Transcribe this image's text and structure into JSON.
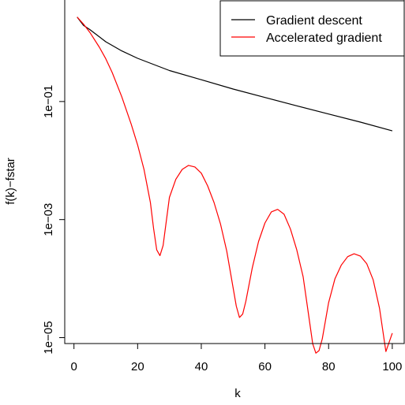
{
  "chart_data": {
    "type": "line",
    "title": "",
    "xlabel": "k",
    "ylabel": "f(k)−fstar",
    "xlim": [
      -2.9,
      104
    ],
    "ylim_log10": [
      -5.1,
      0.72
    ],
    "y_scale": "log",
    "grid": false,
    "legend_placement": "top-right",
    "x_ticks": [
      {
        "value": 0,
        "label": "0"
      },
      {
        "value": 20,
        "label": "20"
      },
      {
        "value": 40,
        "label": "40"
      },
      {
        "value": 60,
        "label": "60"
      },
      {
        "value": 80,
        "label": "80"
      },
      {
        "value": 100,
        "label": "100"
      }
    ],
    "y_ticks": [
      {
        "value": 0.1,
        "label": "1e−01"
      },
      {
        "value": 0.001,
        "label": "1e−03"
      },
      {
        "value": 1e-05,
        "label": "1e−05"
      }
    ],
    "series": [
      {
        "name": "Gradient descent",
        "color": "#000000",
        "x": [
          1,
          3,
          5,
          10,
          15,
          20,
          30,
          40,
          50,
          60,
          70,
          80,
          90,
          100
        ],
        "y": [
          2.7,
          1.95,
          1.65,
          1.03,
          0.72,
          0.54,
          0.335,
          0.234,
          0.163,
          0.117,
          0.0845,
          0.0615,
          0.0447,
          0.0318
        ]
      },
      {
        "name": "Accelerated gradient",
        "color": "#ff0000",
        "x": [
          1,
          3,
          5,
          8,
          10,
          12,
          15,
          18,
          20,
          22,
          24,
          25,
          26,
          27,
          28,
          30,
          32,
          34,
          36,
          38,
          40,
          42,
          44,
          46,
          48,
          50,
          51,
          52,
          53,
          54,
          56,
          58,
          60,
          62,
          64,
          66,
          68,
          70,
          72,
          74,
          75,
          76,
          77,
          78,
          80,
          82,
          84,
          86,
          88,
          90,
          92,
          94,
          96,
          98,
          100
        ],
        "y": [
          2.7,
          2.05,
          1.48,
          0.83,
          0.53,
          0.31,
          0.121,
          0.041,
          0.0184,
          0.00708,
          0.00195,
          0.000712,
          0.000307,
          0.000245,
          0.000363,
          0.00238,
          0.0048,
          0.00708,
          0.00829,
          0.00778,
          0.0061,
          0.00373,
          0.00195,
          0.000852,
          0.000293,
          6.96e-05,
          3.42e-05,
          2.2e-05,
          2.51e-05,
          4.12e-05,
          0.000151,
          0.000425,
          0.000876,
          0.00135,
          0.00149,
          0.00123,
          0.000692,
          0.000307,
          0.000107,
          1.91e-05,
          7.87e-06,
          5.46e-06,
          6.02e-06,
          9.53e-06,
          3.89e-05,
          9.97e-05,
          0.00017,
          0.000236,
          0.000263,
          0.00024,
          0.000178,
          9.53e-05,
          3.16e-05,
          5.8e-06,
          1.19e-05
        ]
      }
    ]
  }
}
